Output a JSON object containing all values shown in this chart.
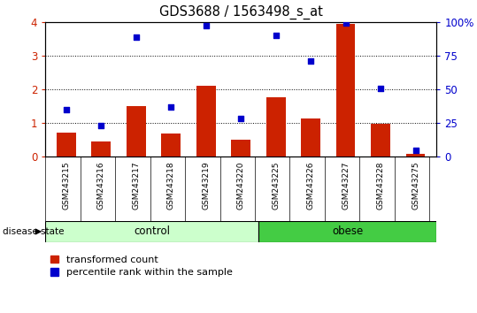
{
  "title": "GDS3688 / 1563498_s_at",
  "samples": [
    "GSM243215",
    "GSM243216",
    "GSM243217",
    "GSM243218",
    "GSM243219",
    "GSM243220",
    "GSM243225",
    "GSM243226",
    "GSM243227",
    "GSM243228",
    "GSM243275"
  ],
  "bar_values": [
    0.7,
    0.45,
    1.5,
    0.68,
    2.1,
    0.5,
    1.75,
    1.13,
    3.95,
    0.98,
    0.08
  ],
  "dot_values": [
    1.38,
    0.92,
    3.55,
    1.48,
    3.88,
    1.13,
    3.6,
    2.85,
    3.98,
    2.02,
    0.18
  ],
  "bar_color": "#cc2200",
  "dot_color": "#0000cc",
  "ylim_left": [
    0,
    4
  ],
  "ylim_right": [
    0,
    100
  ],
  "yticks_left": [
    0,
    1,
    2,
    3,
    4
  ],
  "yticks_right": [
    0,
    25,
    50,
    75,
    100
  ],
  "ytick_right_labels": [
    "0",
    "25",
    "50",
    "75",
    "100%"
  ],
  "group_labels": [
    "control",
    "obese"
  ],
  "control_n": 6,
  "obese_n": 5,
  "control_color": "#ccffcc",
  "obese_color": "#44cc44",
  "legend_bar_label": "transformed count",
  "legend_dot_label": "percentile rank within the sample",
  "disease_state_label": "disease state",
  "bar_width": 0.55,
  "xtick_bg_color": "#cccccc",
  "fig_width": 5.39,
  "fig_height": 3.54
}
